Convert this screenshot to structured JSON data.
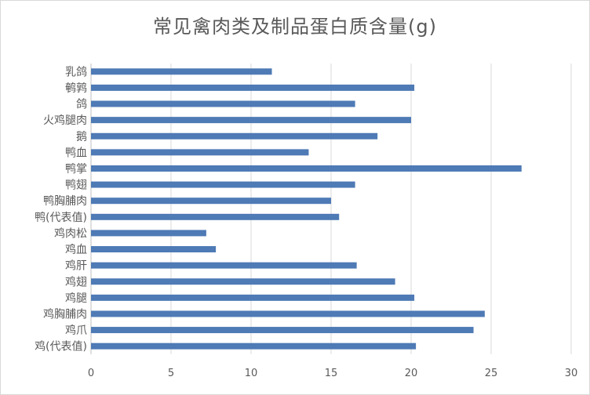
{
  "chart_data": {
    "type": "bar",
    "orientation": "horizontal",
    "title": "常见禽肉类及制品蛋白质含量(g)",
    "xlabel": "",
    "ylabel": "",
    "xlim": [
      0,
      30
    ],
    "xticks": [
      0,
      5,
      10,
      15,
      20,
      25,
      30
    ],
    "grid": true,
    "bar_color": "#4e7ab5",
    "categories": [
      "乳鸽",
      "鹌鹑",
      "鸽",
      "火鸡腿肉",
      "鹅",
      "鸭血",
      "鸭掌",
      "鸭翅",
      "鸭胸脯肉",
      "鸭(代表值)",
      "鸡肉松",
      "鸡血",
      "鸡肝",
      "鸡翅",
      "鸡腿",
      "鸡胸脯肉",
      "鸡爪",
      "鸡(代表值)"
    ],
    "values": [
      11.3,
      20.2,
      16.5,
      20.0,
      17.9,
      13.6,
      26.9,
      16.5,
      15.0,
      15.5,
      7.2,
      7.8,
      16.6,
      19.0,
      20.2,
      24.6,
      23.9,
      20.3
    ]
  }
}
